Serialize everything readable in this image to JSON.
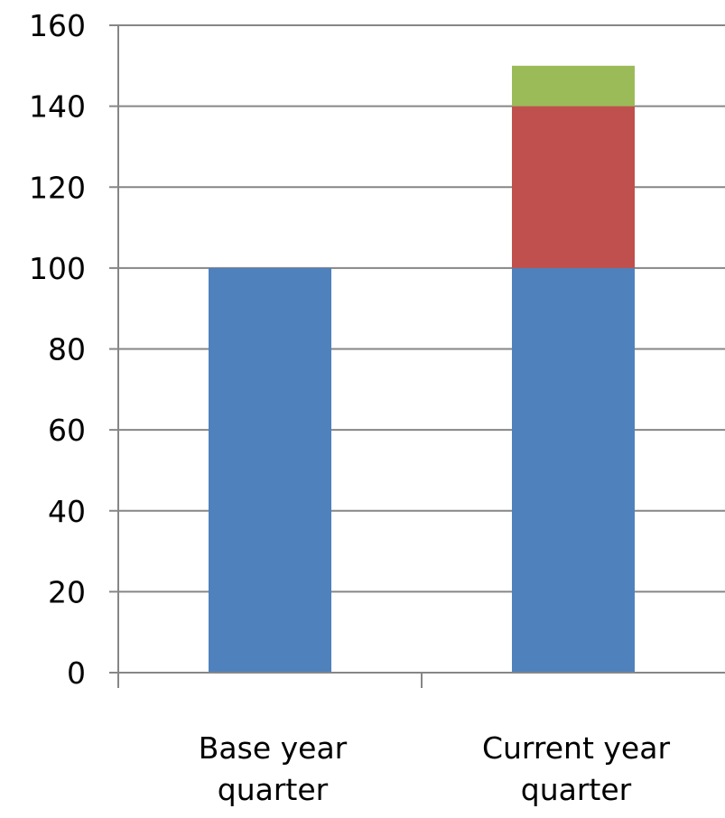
{
  "chart_data": {
    "type": "bar",
    "stacked": true,
    "categories": [
      [
        "Base year",
        "quarter"
      ],
      [
        "Current year",
        "quarter"
      ]
    ],
    "series": [
      {
        "values": [
          100,
          100
        ],
        "color": "#4f81bd"
      },
      {
        "values": [
          0,
          40
        ],
        "color": "#c0504d"
      },
      {
        "values": [
          0,
          10
        ],
        "color": "#9bbb59"
      }
    ],
    "yticks": [
      "0",
      "20",
      "40",
      "60",
      "80",
      "100",
      "120",
      "140",
      "160"
    ],
    "ylim": [
      0,
      160
    ],
    "grid": true,
    "legend": "none",
    "title": "",
    "xlabel": "",
    "ylabel": ""
  }
}
